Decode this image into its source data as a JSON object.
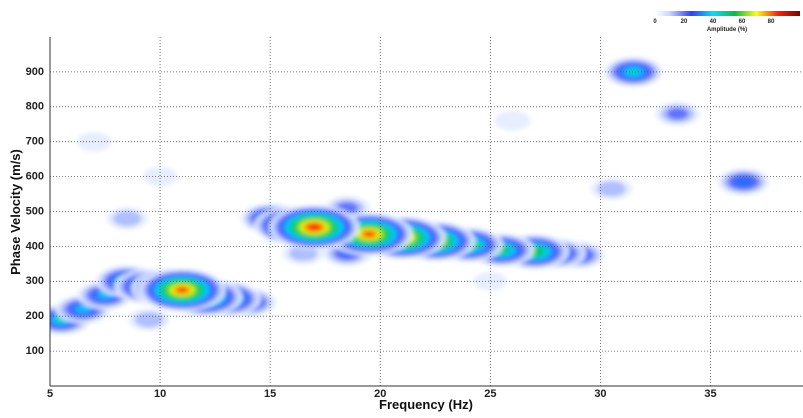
{
  "chart_data": {
    "type": "heatmap",
    "x_label": "Frequency (Hz)",
    "y_label": "Phase Velocity (m/s)",
    "colorbar_label": "Amplitude (%)",
    "colorbar_ticks": [
      0,
      20,
      40,
      60,
      80
    ],
    "xlim": [
      5,
      39.2
    ],
    "ylim": [
      0,
      1000
    ],
    "xticks": [
      5,
      10,
      15,
      20,
      25,
      30,
      35
    ],
    "yticks": [
      100,
      200,
      300,
      400,
      500,
      600,
      700,
      800,
      900
    ],
    "grid": true,
    "peaks": {
      "x": [
        10,
        7,
        26,
        25,
        30.5,
        33.5,
        9.5,
        8.5,
        18.5,
        16.5,
        18.5,
        36.5,
        31.5,
        5.5,
        6.5,
        7.5,
        8.5,
        9.5,
        14,
        13,
        12,
        10.5,
        11,
        15,
        29,
        28,
        27,
        25.5,
        24,
        22.5,
        18.5,
        16,
        21,
        19.5,
        17
      ],
      "y": [
        600,
        700,
        760,
        300,
        565,
        780,
        190,
        480,
        510,
        380,
        380,
        585,
        900,
        190,
        220,
        260,
        300,
        285,
        240,
        250,
        255,
        280,
        275,
        480,
        375,
        380,
        385,
        390,
        405,
        415,
        440,
        460,
        425,
        435,
        455
      ],
      "values": [
        10,
        10,
        12,
        8,
        20,
        25,
        20,
        20,
        25,
        20,
        30,
        35,
        45,
        45,
        40,
        40,
        50,
        60,
        40,
        60,
        70,
        75,
        85,
        45,
        35,
        45,
        60,
        55,
        60,
        75,
        55,
        70,
        85,
        85,
        90
      ]
    }
  }
}
